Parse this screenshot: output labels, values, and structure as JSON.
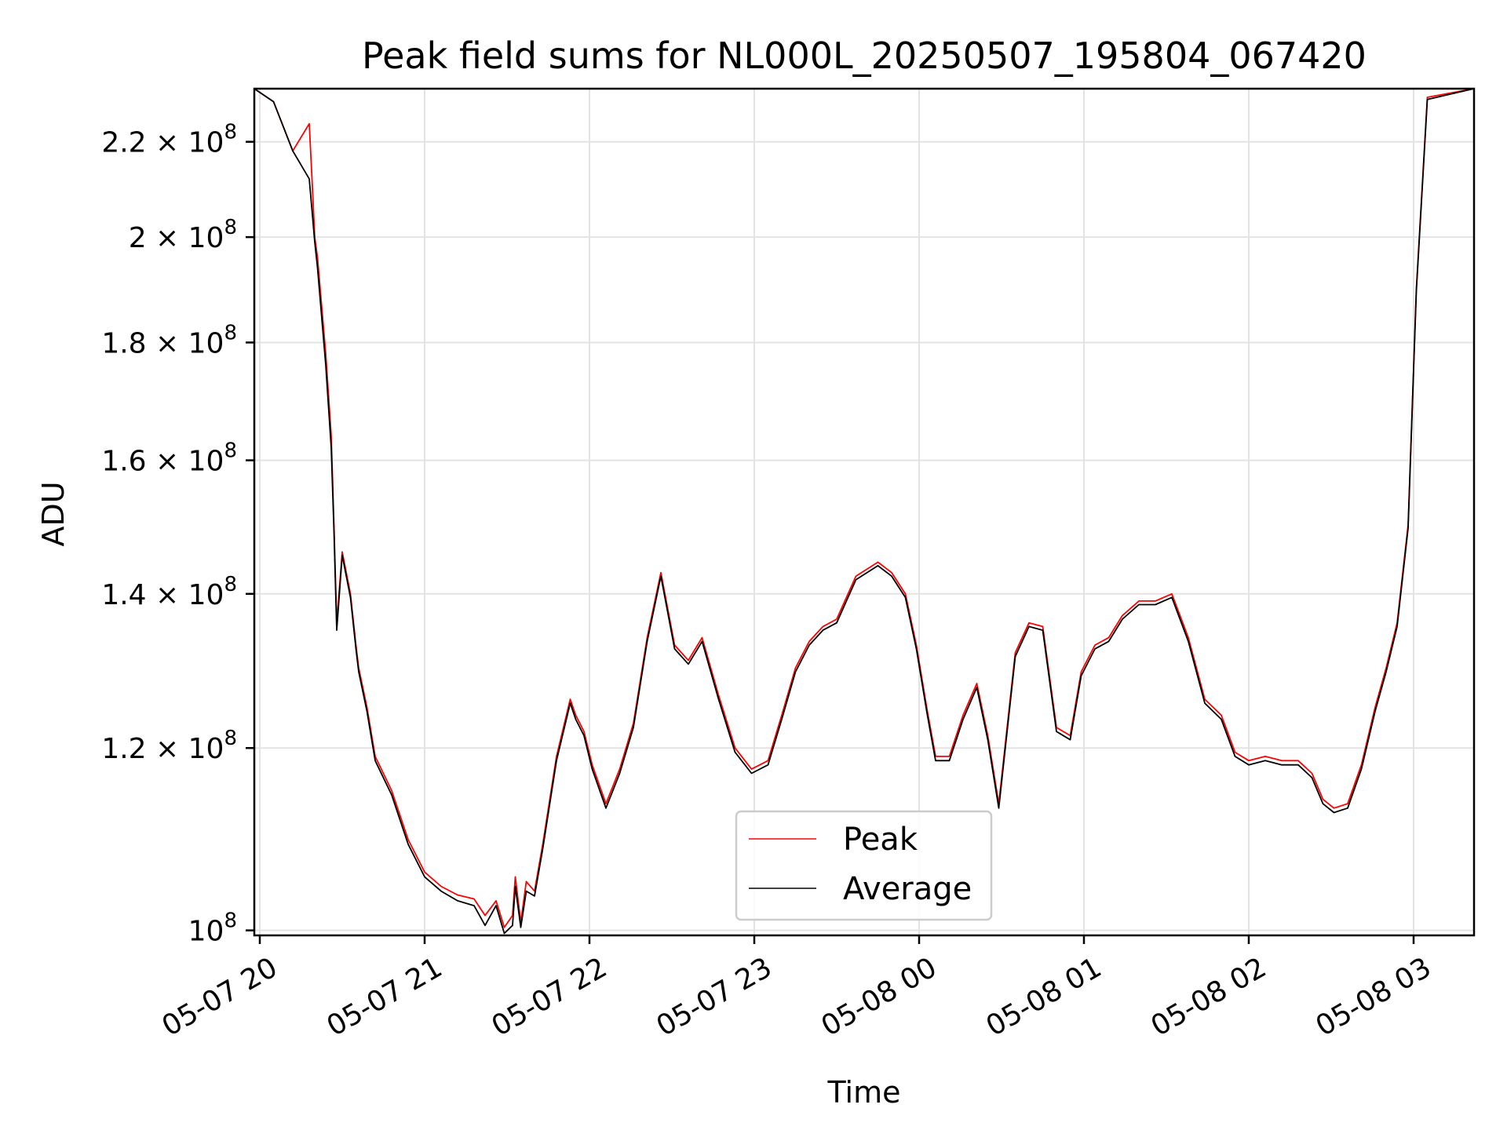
{
  "chart_data": {
    "type": "line",
    "title": "Peak field sums for NL000L_20250507_195804_067420",
    "xlabel": "Time",
    "ylabel": "ADU",
    "x_axis_kind": "datetime",
    "xlim": [
      "2025-05-07 19:58",
      "2025-05-08 03:22"
    ],
    "y_scale": "log",
    "ylim": [
      99500000,
      232000000
    ],
    "grid": true,
    "legend_position": "lower-center",
    "x_ticks": [
      {
        "value": "2025-05-07 20:00",
        "label": "05-07 20"
      },
      {
        "value": "2025-05-07 21:00",
        "label": "05-07 21"
      },
      {
        "value": "2025-05-07 22:00",
        "label": "05-07 22"
      },
      {
        "value": "2025-05-07 23:00",
        "label": "05-07 23"
      },
      {
        "value": "2025-05-08 00:00",
        "label": "05-08 00"
      },
      {
        "value": "2025-05-08 01:00",
        "label": "05-08 01"
      },
      {
        "value": "2025-05-08 02:00",
        "label": "05-08 02"
      },
      {
        "value": "2025-05-08 03:00",
        "label": "05-08 03"
      }
    ],
    "y_ticks": [
      {
        "value": 100000000,
        "mantissa": "",
        "exponent": "8"
      },
      {
        "value": 120000000,
        "mantissa": "1.2",
        "exponent": "8"
      },
      {
        "value": 140000000,
        "mantissa": "1.4",
        "exponent": "8"
      },
      {
        "value": 160000000,
        "mantissa": "1.6",
        "exponent": "8"
      },
      {
        "value": 180000000,
        "mantissa": "1.8",
        "exponent": "8"
      },
      {
        "value": 200000000,
        "mantissa": "2",
        "exponent": "8"
      },
      {
        "value": 220000000,
        "mantissa": "2.2",
        "exponent": "8"
      }
    ],
    "series": [
      {
        "name": "Peak",
        "color": "#ff0000",
        "x": [
          "2025-05-07 19:58",
          "2025-05-07 20:05",
          "2025-05-07 20:12",
          "2025-05-07 20:18",
          "2025-05-07 20:19",
          "2025-05-07 20:20",
          "2025-05-07 20:21",
          "2025-05-07 20:24",
          "2025-05-07 20:26",
          "2025-05-07 20:27",
          "2025-05-07 20:28",
          "2025-05-07 20:30",
          "2025-05-07 20:33",
          "2025-05-07 20:35",
          "2025-05-07 20:36",
          "2025-05-07 20:39",
          "2025-05-07 20:42",
          "2025-05-07 20:48",
          "2025-05-07 20:54",
          "2025-05-07 21:00",
          "2025-05-07 21:06",
          "2025-05-07 21:12",
          "2025-05-07 21:18",
          "2025-05-07 21:22",
          "2025-05-07 21:26",
          "2025-05-07 21:29",
          "2025-05-07 21:32",
          "2025-05-07 21:33",
          "2025-05-07 21:35",
          "2025-05-07 21:37",
          "2025-05-07 21:40",
          "2025-05-07 21:43",
          "2025-05-07 21:48",
          "2025-05-07 21:53",
          "2025-05-07 21:55",
          "2025-05-07 21:58",
          "2025-05-07 22:01",
          "2025-05-07 22:06",
          "2025-05-07 22:11",
          "2025-05-07 22:16",
          "2025-05-07 22:21",
          "2025-05-07 22:26",
          "2025-05-07 22:31",
          "2025-05-07 22:36",
          "2025-05-07 22:41",
          "2025-05-07 22:47",
          "2025-05-07 22:53",
          "2025-05-07 22:59",
          "2025-05-07 23:05",
          "2025-05-07 23:10",
          "2025-05-07 23:15",
          "2025-05-07 23:20",
          "2025-05-07 23:25",
          "2025-05-07 23:30",
          "2025-05-07 23:37",
          "2025-05-07 23:45",
          "2025-05-07 23:50",
          "2025-05-07 23:55",
          "2025-05-07 23:59",
          "2025-05-08 00:03",
          "2025-05-08 00:06",
          "2025-05-08 00:11",
          "2025-05-08 00:16",
          "2025-05-08 00:21",
          "2025-05-08 00:25",
          "2025-05-08 00:29",
          "2025-05-08 00:35",
          "2025-05-08 00:40",
          "2025-05-08 00:45",
          "2025-05-08 00:50",
          "2025-05-08 00:55",
          "2025-05-08 00:59",
          "2025-05-08 01:04",
          "2025-05-08 01:09",
          "2025-05-08 01:14",
          "2025-05-08 01:20",
          "2025-05-08 01:26",
          "2025-05-08 01:32",
          "2025-05-08 01:38",
          "2025-05-08 01:44",
          "2025-05-08 01:50",
          "2025-05-08 01:55",
          "2025-05-08 02:00",
          "2025-05-08 02:06",
          "2025-05-08 02:12",
          "2025-05-08 02:18",
          "2025-05-08 02:23",
          "2025-05-08 02:27",
          "2025-05-08 02:31",
          "2025-05-08 02:36",
          "2025-05-08 02:41",
          "2025-05-08 02:46",
          "2025-05-08 02:50",
          "2025-05-08 02:54",
          "2025-05-08 02:58",
          "2025-05-08 03:01",
          "2025-05-08 03:05",
          "2025-05-08 03:22"
        ],
        "y": [
          232000000,
          229000000,
          218000000,
          224000000,
          212000000,
          200000000,
          196000000,
          178000000,
          164000000,
          150000000,
          136000000,
          146000000,
          140000000,
          133000000,
          130000000,
          125000000,
          119000000,
          115000000,
          109500000,
          106000000,
          104500000,
          103600000,
          103200000,
          101500000,
          103000000,
          100300000,
          101500000,
          105500000,
          100800000,
          105000000,
          104000000,
          109000000,
          119000000,
          126000000,
          124000000,
          122000000,
          118000000,
          113500000,
          117500000,
          123000000,
          134000000,
          143000000,
          133000000,
          131000000,
          134000000,
          126500000,
          120000000,
          117500000,
          118500000,
          124000000,
          130000000,
          133500000,
          135500000,
          136500000,
          142500000,
          144500000,
          143000000,
          140000000,
          133000000,
          124500000,
          119000000,
          119000000,
          124000000,
          128000000,
          121500000,
          113500000,
          132000000,
          136000000,
          135500000,
          122500000,
          121500000,
          129500000,
          133000000,
          134000000,
          137000000,
          139000000,
          139000000,
          140000000,
          134000000,
          126000000,
          124000000,
          119500000,
          118500000,
          119000000,
          118500000,
          118500000,
          117000000,
          114000000,
          113000000,
          113500000,
          118000000,
          125000000,
          130000000,
          136000000,
          150000000,
          190000000,
          230000000,
          232000000
        ]
      },
      {
        "name": "Average",
        "color": "#000000",
        "x": [
          "2025-05-07 19:58",
          "2025-05-07 20:05",
          "2025-05-07 20:12",
          "2025-05-07 20:18",
          "2025-05-07 20:20",
          "2025-05-07 20:21",
          "2025-05-07 20:24",
          "2025-05-07 20:26",
          "2025-05-07 20:27",
          "2025-05-07 20:28",
          "2025-05-07 20:30",
          "2025-05-07 20:33",
          "2025-05-07 20:35",
          "2025-05-07 20:36",
          "2025-05-07 20:39",
          "2025-05-07 20:42",
          "2025-05-07 20:48",
          "2025-05-07 20:54",
          "2025-05-07 21:00",
          "2025-05-07 21:06",
          "2025-05-07 21:12",
          "2025-05-07 21:18",
          "2025-05-07 21:22",
          "2025-05-07 21:26",
          "2025-05-07 21:29",
          "2025-05-07 21:32",
          "2025-05-07 21:33",
          "2025-05-07 21:35",
          "2025-05-07 21:37",
          "2025-05-07 21:40",
          "2025-05-07 21:43",
          "2025-05-07 21:48",
          "2025-05-07 21:53",
          "2025-05-07 21:55",
          "2025-05-07 21:58",
          "2025-05-07 22:01",
          "2025-05-07 22:06",
          "2025-05-07 22:11",
          "2025-05-07 22:16",
          "2025-05-07 22:21",
          "2025-05-07 22:26",
          "2025-05-07 22:31",
          "2025-05-07 22:36",
          "2025-05-07 22:41",
          "2025-05-07 22:47",
          "2025-05-07 22:53",
          "2025-05-07 22:59",
          "2025-05-07 23:05",
          "2025-05-07 23:10",
          "2025-05-07 23:15",
          "2025-05-07 23:20",
          "2025-05-07 23:25",
          "2025-05-07 23:30",
          "2025-05-07 23:37",
          "2025-05-07 23:45",
          "2025-05-07 23:50",
          "2025-05-07 23:55",
          "2025-05-07 23:59",
          "2025-05-08 00:03",
          "2025-05-08 00:06",
          "2025-05-08 00:11",
          "2025-05-08 00:16",
          "2025-05-08 00:21",
          "2025-05-08 00:25",
          "2025-05-08 00:29",
          "2025-05-08 00:35",
          "2025-05-08 00:40",
          "2025-05-08 00:45",
          "2025-05-08 00:50",
          "2025-05-08 00:55",
          "2025-05-08 00:59",
          "2025-05-08 01:04",
          "2025-05-08 01:09",
          "2025-05-08 01:14",
          "2025-05-08 01:20",
          "2025-05-08 01:26",
          "2025-05-08 01:32",
          "2025-05-08 01:38",
          "2025-05-08 01:44",
          "2025-05-08 01:50",
          "2025-05-08 01:55",
          "2025-05-08 02:00",
          "2025-05-08 02:06",
          "2025-05-08 02:12",
          "2025-05-08 02:18",
          "2025-05-08 02:23",
          "2025-05-08 02:27",
          "2025-05-08 02:31",
          "2025-05-08 02:36",
          "2025-05-08 02:41",
          "2025-05-08 02:46",
          "2025-05-08 02:50",
          "2025-05-08 02:54",
          "2025-05-08 02:58",
          "2025-05-08 03:01",
          "2025-05-08 03:05",
          "2025-05-08 03:22"
        ],
        "y": [
          232000000,
          229000000,
          218000000,
          212000000,
          199000000,
          194000000,
          176000000,
          162000000,
          149000000,
          135000000,
          145500000,
          139500000,
          132500000,
          129500000,
          124500000,
          118500000,
          114500000,
          109000000,
          105500000,
          104000000,
          103000000,
          102500000,
          100500000,
          102500000,
          99700000,
          100500000,
          104500000,
          100300000,
          104000000,
          103500000,
          108500000,
          118500000,
          125500000,
          123500000,
          121500000,
          117500000,
          113000000,
          117000000,
          122500000,
          133500000,
          142500000,
          132500000,
          130500000,
          133500000,
          126000000,
          119500000,
          117000000,
          118000000,
          123500000,
          129500000,
          133000000,
          135000000,
          136000000,
          142000000,
          144000000,
          142500000,
          139500000,
          132500000,
          124000000,
          118500000,
          118500000,
          123500000,
          127500000,
          121000000,
          113000000,
          131500000,
          135500000,
          135000000,
          122000000,
          121000000,
          129000000,
          132500000,
          133500000,
          136500000,
          138500000,
          138500000,
          139500000,
          133500000,
          125500000,
          123500000,
          119000000,
          118000000,
          118500000,
          118000000,
          118000000,
          116500000,
          113500000,
          112500000,
          113000000,
          117500000,
          124500000,
          129500000,
          135500000,
          149500000,
          189500000,
          229500000,
          232000000
        ]
      }
    ]
  }
}
